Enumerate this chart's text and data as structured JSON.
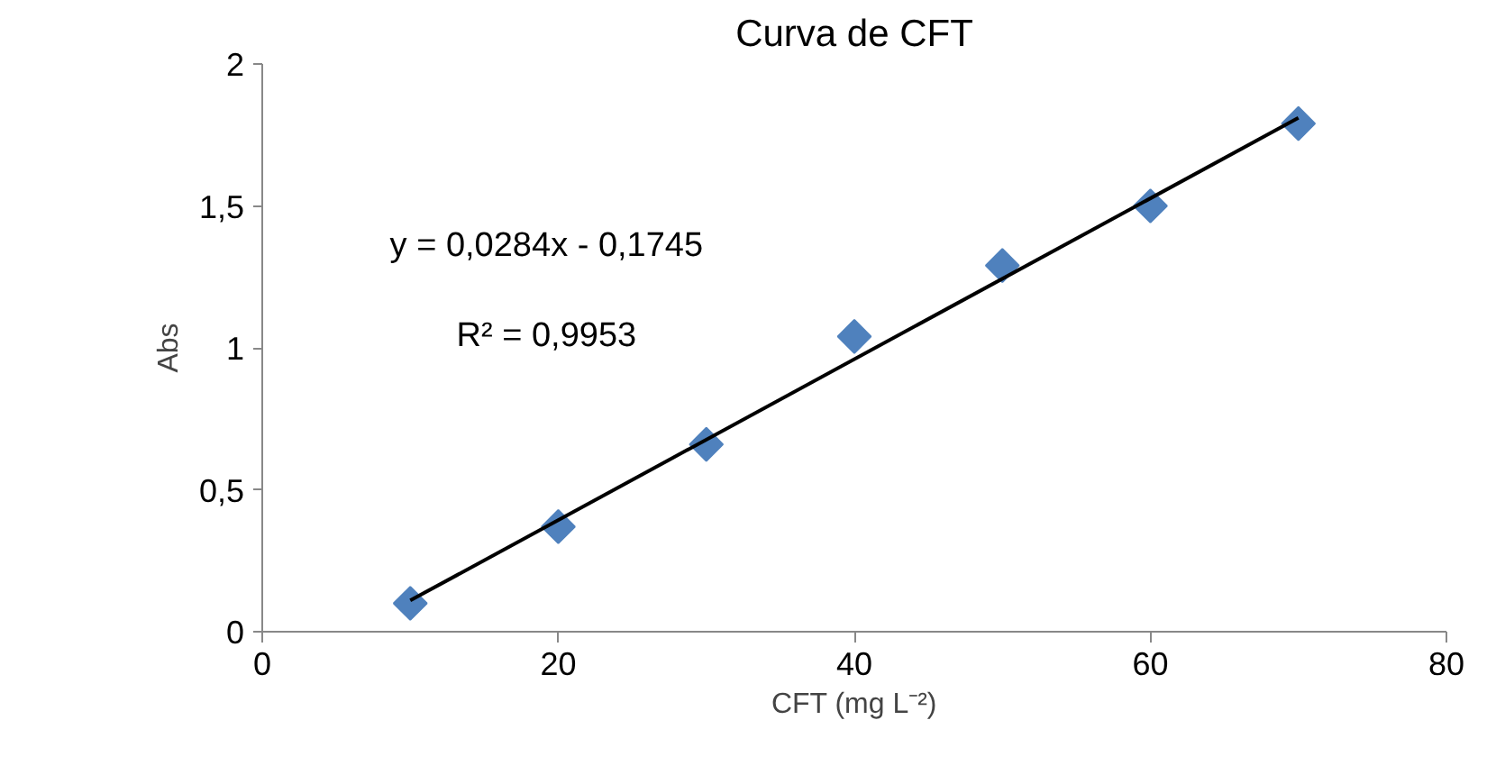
{
  "chart_data": {
    "type": "scatter",
    "title": "Curva de CFT",
    "xlabel": "CFT (mg L⁻²)",
    "ylabel": "Abs",
    "x": [
      10,
      20,
      30,
      40,
      50,
      60,
      70
    ],
    "series": [
      {
        "color": "#4f81bd",
        "values": [
          0.1,
          0.37,
          0.66,
          1.04,
          1.29,
          1.5,
          1.79
        ],
        "marker": "diamond"
      },
      {
        "type": "line",
        "color": "#000000",
        "x": [
          10,
          70
        ],
        "values": [
          0.11,
          1.81
        ]
      }
    ],
    "annotations": [
      "y = 0,0284x - 0,1745",
      "R² = 0,9953"
    ],
    "xlim": [
      0,
      80
    ],
    "xticks": [
      0,
      20,
      40,
      60,
      80
    ],
    "ylim": [
      0,
      2
    ],
    "yticks": [
      0,
      {
        "value": 0.5,
        "label": "0,5"
      },
      1,
      {
        "value": 1.5,
        "label": "1,5"
      },
      2
    ],
    "grid": false
  }
}
